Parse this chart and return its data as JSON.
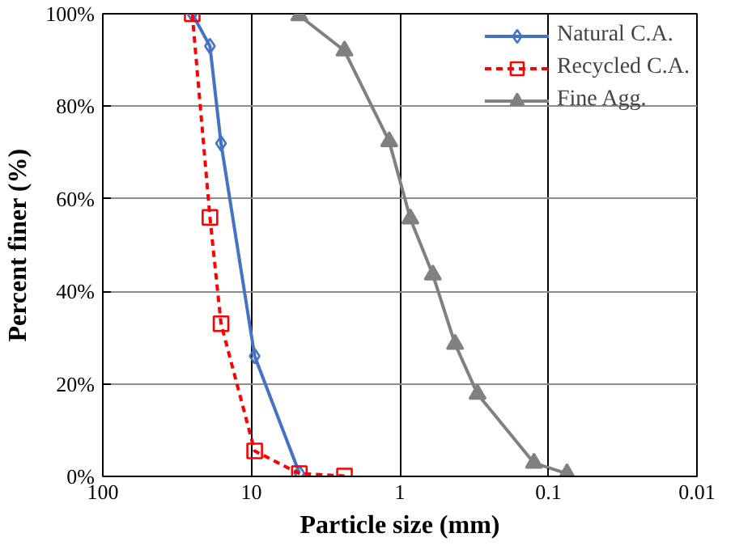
{
  "chart_data": {
    "type": "line",
    "xlabel": "Particle size (mm)",
    "ylabel": "Percent finer (%)",
    "log": "x",
    "xlim": [
      100,
      0.01
    ],
    "xticks": [
      100,
      10,
      1,
      0.1,
      0.01
    ],
    "ylim": [
      0,
      100
    ],
    "yticks": [
      {
        "value": 0,
        "label": "0%"
      },
      {
        "value": 20,
        "label": "20%"
      },
      {
        "value": 40,
        "label": "40%"
      },
      {
        "value": 60,
        "label": "60%"
      },
      {
        "value": 80,
        "label": "80%"
      },
      {
        "value": 100,
        "label": "100%"
      }
    ],
    "grid": true,
    "legend": "top right",
    "series": [
      {
        "name": "Natural C.A.",
        "color": "#4472c4",
        "marker": "diamond",
        "line_style": "solid",
        "x": [
          25,
          19,
          16,
          9.5,
          4.75
        ],
        "values": [
          100,
          93,
          72,
          26,
          0.7
        ]
      },
      {
        "name": "Recycled C.A.",
        "color": "#ff0000",
        "marker": "square",
        "line_style": "dashed",
        "x": [
          25,
          19,
          16,
          9.5,
          4.75,
          2.36
        ],
        "values": [
          100,
          56,
          33,
          5.5,
          0.6,
          0.1
        ]
      },
      {
        "name": "Fine Agg.",
        "color": "#808080",
        "marker": "triangle",
        "line_style": "solid",
        "x": [
          4.75,
          2.36,
          1.18,
          0.85,
          0.6,
          0.425,
          0.3,
          0.125,
          0.075
        ],
        "values": [
          99.6,
          92,
          72.4,
          55.7,
          43.6,
          28.6,
          17.8,
          2.9,
          0.6
        ]
      }
    ]
  }
}
